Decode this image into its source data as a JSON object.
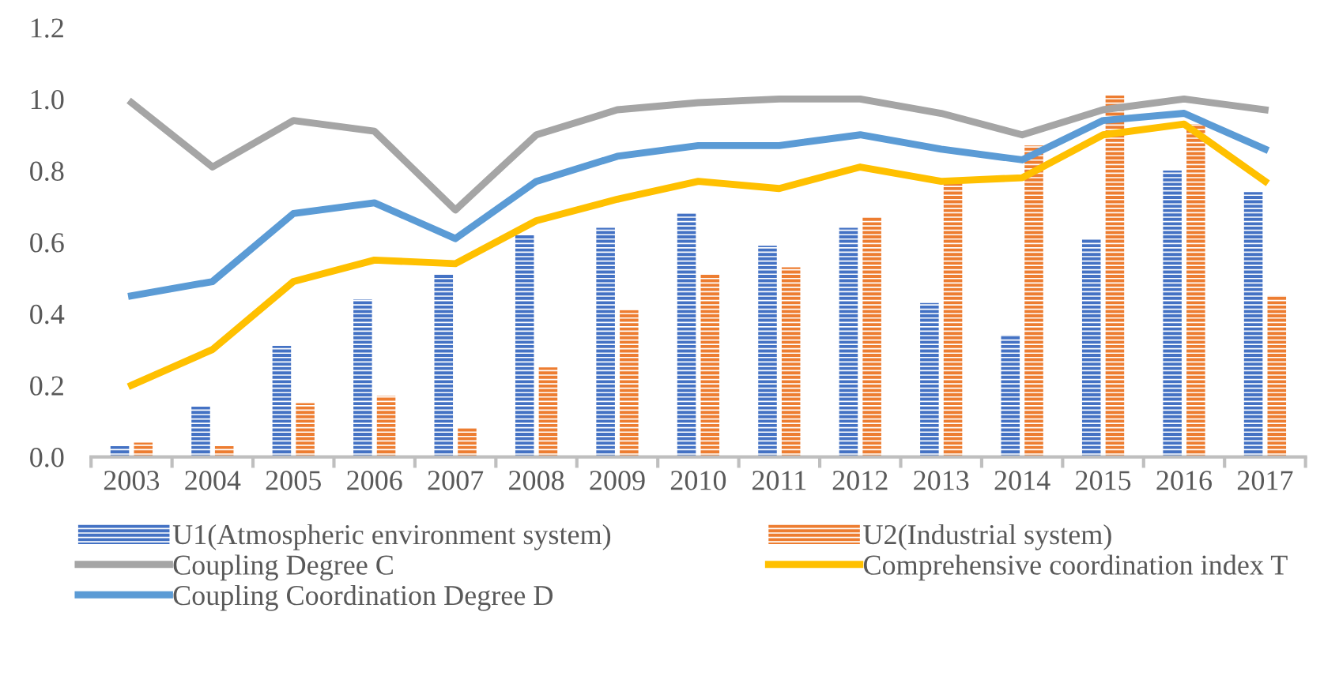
{
  "chart_data": {
    "type": "bar",
    "categories": [
      "2003",
      "2004",
      "2005",
      "2006",
      "2007",
      "2008",
      "2009",
      "2010",
      "2011",
      "2012",
      "2013",
      "2014",
      "2015",
      "2016",
      "2017"
    ],
    "series": [
      {
        "name": "U1(Atmospheric environment system)",
        "color": "#4472c4",
        "values": [
          0.03,
          0.14,
          0.31,
          0.44,
          0.51,
          0.62,
          0.64,
          0.68,
          0.59,
          0.64,
          0.43,
          0.34,
          0.61,
          0.8,
          0.74
        ]
      },
      {
        "name": "U2(Industrial system)",
        "color": "#ed7d31",
        "values": [
          0.04,
          0.03,
          0.15,
          0.17,
          0.08,
          0.25,
          0.41,
          0.51,
          0.53,
          0.67,
          0.78,
          0.87,
          1.01,
          0.93,
          0.45
        ]
      },
      {
        "name": "Coupling Degree C",
        "type": "line",
        "color": "#a5a5a5",
        "values": [
          0.99,
          0.81,
          0.94,
          0.91,
          0.69,
          0.9,
          0.97,
          0.99,
          1.0,
          1.0,
          0.96,
          0.9,
          0.97,
          1.0,
          0.97
        ]
      },
      {
        "name": "Comprehensive coordination index T",
        "type": "line",
        "color": "#ffc000",
        "values": [
          0.2,
          0.3,
          0.49,
          0.55,
          0.54,
          0.66,
          0.72,
          0.77,
          0.75,
          0.81,
          0.77,
          0.78,
          0.9,
          0.93,
          0.77
        ]
      },
      {
        "name": "Coupling Coordination Degree D",
        "type": "line",
        "color": "#5b9bd5",
        "values": [
          0.45,
          0.49,
          0.68,
          0.71,
          0.61,
          0.77,
          0.84,
          0.87,
          0.87,
          0.9,
          0.86,
          0.83,
          0.94,
          0.96,
          0.86
        ]
      }
    ],
    "ylim": [
      0,
      1.2
    ],
    "yticks": [
      {
        "value": 0,
        "label": "0.0"
      },
      {
        "value": 0.2,
        "label": "0.2"
      },
      {
        "value": 0.4,
        "label": "0.4"
      },
      {
        "value": 0.6,
        "label": "0.6"
      },
      {
        "value": 0.8,
        "label": "0.8"
      },
      {
        "value": 1.0,
        "label": "1.0"
      },
      {
        "value": 1.2,
        "label": "1.2"
      }
    ],
    "grid": false,
    "legend": "bottom",
    "marker": "none",
    "line_style": "solid"
  }
}
